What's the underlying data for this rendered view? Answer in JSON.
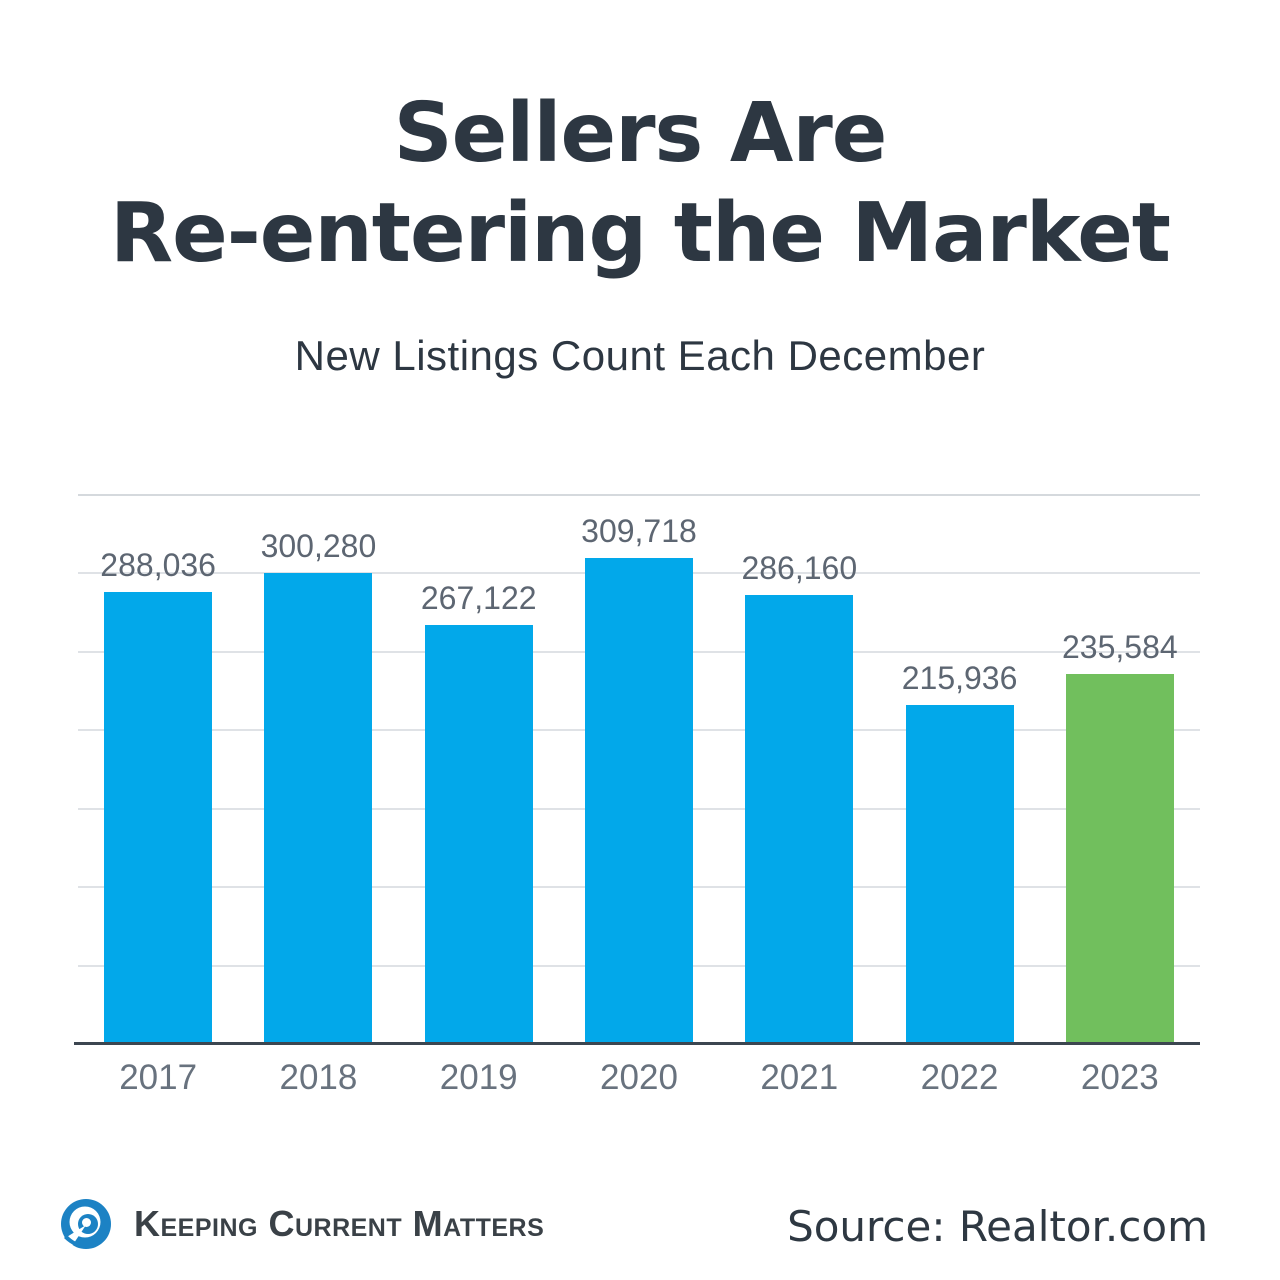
{
  "title": {
    "line1": "Sellers Are",
    "line2": "Re-entering the Market"
  },
  "subtitle": "New Listings Count Each December",
  "chart_data": {
    "type": "bar",
    "title": "Sellers Are Re-entering the Market",
    "subtitle": "New Listings Count Each December",
    "categories": [
      "2017",
      "2018",
      "2019",
      "2020",
      "2021",
      "2022",
      "2023"
    ],
    "values": [
      288036,
      300280,
      267122,
      309718,
      286160,
      215936,
      235584
    ],
    "value_labels": [
      "288,036",
      "300,280",
      "267,122",
      "309,718",
      "286,160",
      "215,936",
      "235,584"
    ],
    "xlabel": "",
    "ylabel": "",
    "ylim": [
      0,
      350000
    ],
    "gridline_step": 50000,
    "grid": true,
    "legend": false,
    "bar_color_default": "#02a8ea",
    "bar_color_highlight": "#71bf5d",
    "highlight_index": 6
  },
  "footer": {
    "logo_text": "Keeping Current Matters",
    "source_label": "Source: Realtor.com"
  },
  "colors": {
    "title_text": "#2d3742",
    "value_label": "#5d6672",
    "axis_label": "#68727e",
    "gridline": "#dfe2e6",
    "axis_line": "#3c4650",
    "logo_blue": "#1c82c4"
  }
}
